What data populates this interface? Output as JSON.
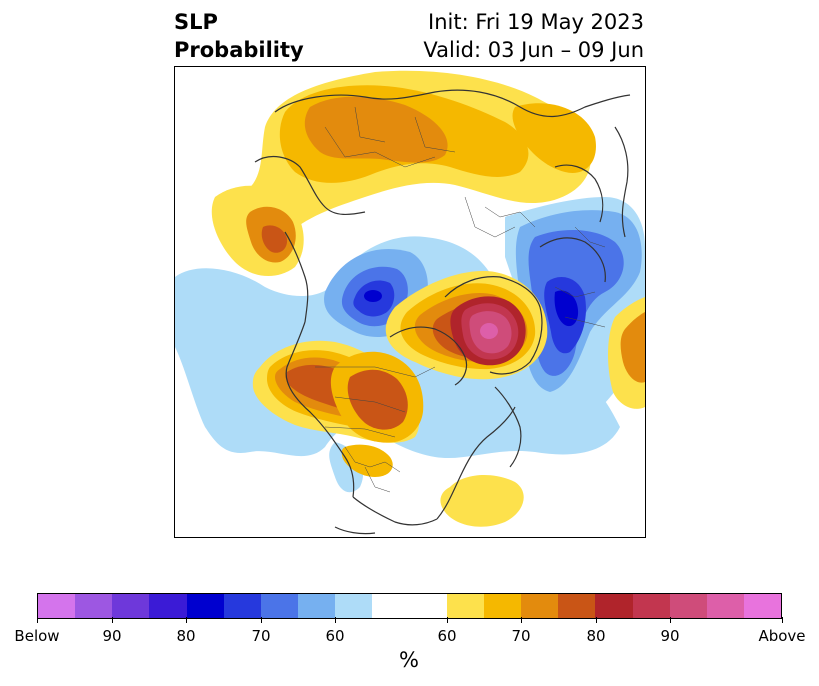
{
  "title": {
    "left_line1": "SLP",
    "left_line2": "Probability",
    "right_line1": "Init: Fri 19 May 2023",
    "right_line2": "Valid: 03 Jun – 09 Jun"
  },
  "colorbar": {
    "units": "%",
    "colors": [
      "#d474ec",
      "#9d57e2",
      "#6e38da",
      "#3b1bd6",
      "#0000cf",
      "#2639dd",
      "#4b74e8",
      "#76b0f0",
      "#aedcf8",
      "#ffffff",
      "#ffffff",
      "#fde14c",
      "#f5b800",
      "#e38b0d",
      "#c95516",
      "#b0242b",
      "#c2364f",
      "#cf4c7a",
      "#dd5fa9",
      "#e873dd"
    ],
    "tick_labels": [
      "Below",
      "90",
      "80",
      "70",
      "60",
      "60",
      "70",
      "80",
      "90",
      "Above"
    ]
  },
  "map_layers": {
    "colors": {
      "light_blue": "#aedcf8",
      "blue": "#76b0f0",
      "mid_blue": "#4b74e8",
      "deep_blue": "#2639dd",
      "navy": "#0000cf",
      "yellow": "#fde14c",
      "gold": "#f5b800",
      "orange": "#e38b0d",
      "dark_orange": "#c95516",
      "red": "#b0242b",
      "crimson": "#c2364f",
      "rose": "#cf4c7a",
      "pink": "#dd5fa9",
      "coastline": "#333333"
    }
  }
}
